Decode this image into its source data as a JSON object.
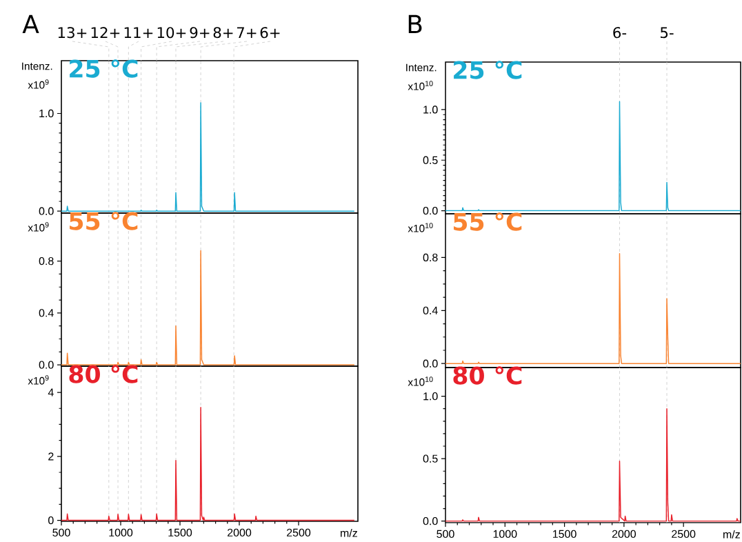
{
  "chart_data": [
    {
      "type": "line",
      "title": "25 °C",
      "ylabel": "Intenz.",
      "annotations": [
        "x10$^{9}$",
        "A",
        {
          "text": "13+",
          "x": 900,
          "y": 1.54
        },
        {
          "text": "12+",
          "x": 977,
          "y": 1.54
        },
        {
          "text": "11+",
          "x": 1066,
          "y": 1.54
        },
        {
          "text": "10+",
          "x": 1172,
          "y": 1.54
        },
        {
          "text": "9+",
          "x": 1303,
          "y": 1.54
        },
        {
          "text": "8+",
          "x": 1465,
          "y": 1.54
        },
        {
          "text": "7+",
          "x": 1675,
          "y": 1.54
        },
        {
          "text": "6+",
          "x": 1954,
          "y": 1.54
        }
      ],
      "x": [
        500,
        546,
        550,
        558,
        1168,
        1172,
        1180,
        1299,
        1303,
        1311,
        1461,
        1465,
        1473,
        1671,
        1675,
        1683,
        1700,
        1956,
        1960,
        1968,
        2970
      ],
      "series": [
        {
          "color": "#1aabd1",
          "values": [
            0,
            0,
            0.05,
            0,
            0,
            0.01,
            0,
            0,
            0.01,
            0,
            0,
            0.19,
            0,
            0,
            1.11,
            0.05,
            0,
            0,
            0.19,
            0,
            0
          ]
        }
      ],
      "xlim": [
        500,
        3000
      ],
      "ylim": [
        -0.02,
        1.54
      ],
      "yticks": [
        {
          "value": 0,
          "label": "0.0"
        },
        {
          "value": 1,
          "label": "1.0"
        }
      ],
      "tick_labels": "y",
      "ref_lines": [
        {
          "axis": "x",
          "value": 900,
          "color": "#c8c8c8",
          "line_style": "dashed"
        },
        {
          "axis": "x",
          "value": 977,
          "color": "#c8c8c8",
          "line_style": "dashed"
        },
        {
          "axis": "x",
          "value": 1066,
          "color": "#c8c8c8",
          "line_style": "dashed"
        },
        {
          "axis": "x",
          "value": 1172,
          "color": "#c8c8c8",
          "line_style": "dashed"
        },
        {
          "axis": "x",
          "value": 1303,
          "color": "#c8c8c8",
          "line_style": "dashed"
        },
        {
          "axis": "x",
          "value": 1465,
          "color": "#c8c8c8",
          "line_style": "dashed"
        },
        {
          "axis": "x",
          "value": 1675,
          "color": "#c8c8c8",
          "line_style": "dashed"
        },
        {
          "axis": "x",
          "value": 1954,
          "color": "#c8c8c8",
          "line_style": "dashed"
        }
      ]
    },
    {
      "type": "line",
      "title": "25 °C",
      "ylabel": "Intenz.",
      "annotations": [
        "x10$^{10}$",
        "B",
        {
          "text": "6-",
          "x": 1963,
          "y": 1.47
        },
        {
          "text": "5-",
          "x": 2360,
          "y": 1.47
        }
      ],
      "x": [
        500,
        641,
        645,
        653,
        774,
        778,
        786,
        1959,
        1963,
        1972,
        1980,
        2356,
        2360,
        2368,
        2375,
        2980
      ],
      "series": [
        {
          "color": "#1aabd1",
          "values": [
            0,
            0,
            0.03,
            0,
            0,
            0.01,
            0,
            0,
            1.08,
            0.08,
            0,
            0,
            0.28,
            0.03,
            0,
            0
          ]
        }
      ],
      "xlim": [
        500,
        2980
      ],
      "ylim": [
        -0.03,
        1.47
      ],
      "yticks": [
        {
          "value": 0,
          "label": "0.0"
        },
        {
          "value": 0.5,
          "label": "0.5"
        },
        {
          "value": 1,
          "label": "1.0"
        }
      ],
      "tick_labels": "y",
      "ref_lines": [
        {
          "axis": "x",
          "value": 1963,
          "color": "#c8c8c8",
          "line_style": "dashed"
        },
        {
          "axis": "x",
          "value": 2360,
          "color": "#c8c8c8",
          "line_style": "dashed"
        }
      ]
    },
    {
      "type": "line",
      "title": "55 °C",
      "annotations": [
        "x10$^{9}$"
      ],
      "x": [
        500,
        546,
        550,
        558,
        973,
        977,
        985,
        1062,
        1066,
        1074,
        1168,
        1172,
        1180,
        1299,
        1303,
        1311,
        1461,
        1465,
        1473,
        1671,
        1675,
        1683,
        1700,
        1956,
        1960,
        1968,
        2970
      ],
      "series": [
        {
          "color": "#f98330",
          "values": [
            0,
            0,
            0.09,
            0,
            0,
            0.02,
            0,
            0,
            0.02,
            0,
            0,
            0.04,
            0,
            0,
            0.02,
            0,
            0,
            0.3,
            0,
            0,
            0.88,
            0.04,
            0,
            0,
            0.07,
            0,
            0
          ]
        }
      ],
      "xlim": [
        500,
        3000
      ],
      "ylim": [
        -0.01,
        1.17
      ],
      "yticks": [
        {
          "value": 0,
          "label": "0.0"
        },
        {
          "value": 0.4,
          "label": "0.4"
        },
        {
          "value": 0.8,
          "label": "0.8"
        }
      ],
      "tick_labels": "y",
      "ref_lines": [
        {
          "axis": "x",
          "value": 900,
          "color": "#c8c8c8",
          "line_style": "dashed"
        },
        {
          "axis": "x",
          "value": 977,
          "color": "#c8c8c8",
          "line_style": "dashed"
        },
        {
          "axis": "x",
          "value": 1066,
          "color": "#c8c8c8",
          "line_style": "dashed"
        },
        {
          "axis": "x",
          "value": 1172,
          "color": "#c8c8c8",
          "line_style": "dashed"
        },
        {
          "axis": "x",
          "value": 1303,
          "color": "#c8c8c8",
          "line_style": "dashed"
        },
        {
          "axis": "x",
          "value": 1465,
          "color": "#c8c8c8",
          "line_style": "dashed"
        },
        {
          "axis": "x",
          "value": 1675,
          "color": "#c8c8c8",
          "line_style": "dashed"
        },
        {
          "axis": "x",
          "value": 1954,
          "color": "#c8c8c8",
          "line_style": "dashed"
        }
      ]
    },
    {
      "type": "line",
      "title": "55 °C",
      "annotations": [
        "x10$^{10}$"
      ],
      "x": [
        500,
        641,
        645,
        653,
        774,
        778,
        786,
        1959,
        1963,
        1972,
        1980,
        2356,
        2360,
        2368,
        2375,
        2980
      ],
      "series": [
        {
          "color": "#f98330",
          "values": [
            0,
            0,
            0.02,
            0,
            0,
            0.01,
            0,
            0,
            0.83,
            0.06,
            0,
            0,
            0.49,
            0.2,
            0,
            0
          ]
        }
      ],
      "xlim": [
        500,
        2980
      ],
      "ylim": [
        -0.03,
        1.13
      ],
      "yticks": [
        {
          "value": 0,
          "label": "0.0"
        },
        {
          "value": 0.4,
          "label": "0.4"
        },
        {
          "value": 0.8,
          "label": "0.8"
        }
      ],
      "tick_labels": "y",
      "ref_lines": [
        {
          "axis": "x",
          "value": 1963,
          "color": "#c8c8c8",
          "line_style": "dashed"
        },
        {
          "axis": "x",
          "value": 2360,
          "color": "#c8c8c8",
          "line_style": "dashed"
        }
      ]
    },
    {
      "type": "line",
      "title": "80 °C",
      "xlabel": "m/z",
      "annotations": [
        "x10$^{9}$"
      ],
      "x": [
        500,
        546,
        550,
        558,
        896,
        900,
        908,
        973,
        977,
        985,
        1062,
        1066,
        1074,
        1168,
        1172,
        1180,
        1299,
        1303,
        1311,
        1461,
        1465,
        1473,
        1671,
        1675,
        1683,
        1696,
        1700,
        1708,
        1956,
        1960,
        1968,
        2136,
        2140,
        2148,
        2970
      ],
      "series": [
        {
          "color": "#e8202a",
          "values": [
            0,
            0,
            0.2,
            0,
            0,
            0.13,
            0,
            0,
            0.19,
            0,
            0,
            0.19,
            0,
            0,
            0.18,
            0,
            0,
            0.2,
            0,
            0,
            1.87,
            0,
            0,
            3.53,
            0.15,
            0,
            0.1,
            0,
            0,
            0.2,
            0,
            0,
            0.13,
            0,
            0
          ]
        }
      ],
      "xlim": [
        500,
        3000
      ],
      "ylim": [
        -0.03,
        4.82
      ],
      "xticks": [
        500,
        1000,
        1500,
        2000,
        2500
      ],
      "yticks": [
        0,
        2,
        4
      ],
      "ref_lines": [
        {
          "axis": "x",
          "value": 900,
          "color": "#c8c8c8",
          "line_style": "dashed"
        },
        {
          "axis": "x",
          "value": 977,
          "color": "#c8c8c8",
          "line_style": "dashed"
        },
        {
          "axis": "x",
          "value": 1066,
          "color": "#c8c8c8",
          "line_style": "dashed"
        },
        {
          "axis": "x",
          "value": 1172,
          "color": "#c8c8c8",
          "line_style": "dashed"
        },
        {
          "axis": "x",
          "value": 1303,
          "color": "#c8c8c8",
          "line_style": "dashed"
        },
        {
          "axis": "x",
          "value": 1465,
          "color": "#c8c8c8",
          "line_style": "dashed"
        },
        {
          "axis": "x",
          "value": 1675,
          "color": "#c8c8c8",
          "line_style": "dashed"
        },
        {
          "axis": "x",
          "value": 1954,
          "color": "#c8c8c8",
          "line_style": "dashed"
        }
      ]
    },
    {
      "type": "line",
      "title": "80 °C",
      "xlabel": "m/z",
      "annotations": [
        "x10$^{10}$"
      ],
      "x": [
        500,
        641,
        645,
        653,
        774,
        778,
        786,
        1959,
        1963,
        1972,
        2006,
        2010,
        2018,
        2356,
        2360,
        2368,
        2375,
        2396,
        2400,
        2408,
        2946,
        2950,
        2958,
        2980
      ],
      "series": [
        {
          "color": "#e8202a",
          "values": [
            0,
            0,
            0.01,
            0,
            0,
            0.03,
            0,
            0,
            0.48,
            0.03,
            0,
            0.04,
            0,
            0,
            0.9,
            0.15,
            0,
            0,
            0.05,
            0,
            0,
            0.02,
            0,
            0
          ]
        }
      ],
      "xlim": [
        500,
        2980
      ],
      "ylim": [
        -0.013,
        1.23
      ],
      "xticks": [
        500,
        1000,
        1500,
        2000,
        2500
      ],
      "yticks": [
        {
          "value": 0,
          "label": "0.0"
        },
        {
          "value": 0.5,
          "label": "0.5"
        },
        {
          "value": 1,
          "label": "1.0"
        }
      ],
      "ref_lines": [
        {
          "axis": "x",
          "value": 1963,
          "color": "#c8c8c8",
          "line_style": "dashed"
        },
        {
          "axis": "x",
          "value": 2360,
          "color": "#c8c8c8",
          "line_style": "dashed"
        }
      ]
    }
  ]
}
